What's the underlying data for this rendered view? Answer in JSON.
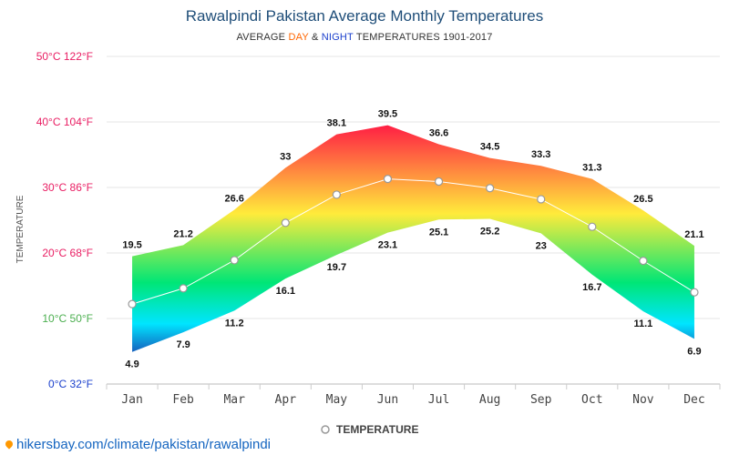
{
  "header": {
    "title": "Rawalpindi Pakistan Average Monthly Temperatures",
    "subtitle_prefix": "AVERAGE ",
    "subtitle_day": "DAY",
    "subtitle_and": " & ",
    "subtitle_night": "NIGHT",
    "subtitle_suffix": " TEMPERATURES 1901-2017"
  },
  "chart_data": {
    "type": "area",
    "categories": [
      "Jan",
      "Feb",
      "Mar",
      "Apr",
      "May",
      "Jun",
      "Jul",
      "Aug",
      "Sep",
      "Oct",
      "Nov",
      "Dec"
    ],
    "series": [
      {
        "name": "DAY",
        "values": [
          19.5,
          21.2,
          26.6,
          33,
          38.1,
          39.5,
          36.6,
          34.5,
          33.3,
          31.3,
          26.5,
          21.1
        ]
      },
      {
        "name": "NIGHT",
        "values": [
          4.9,
          7.9,
          11.2,
          16.1,
          19.7,
          23.1,
          25.1,
          25.2,
          23,
          16.7,
          11.1,
          6.9
        ]
      },
      {
        "name": "TEMPERATURE",
        "values": [
          12.2,
          14.6,
          18.9,
          24.6,
          28.9,
          31.3,
          30.9,
          29.9,
          28.2,
          24,
          18.8,
          14
        ]
      }
    ],
    "y_ticks": [
      {
        "value": 0,
        "label": "0°C 32°F"
      },
      {
        "value": 10,
        "label": "10°C 50°F"
      },
      {
        "value": 20,
        "label": "20°C 68°F"
      },
      {
        "value": 30,
        "label": "30°C 86°F"
      },
      {
        "value": 40,
        "label": "40°C 104°F"
      },
      {
        "value": 50,
        "label": "50°C 122°F"
      }
    ],
    "ylim": [
      0,
      50
    ],
    "ylabel": "TEMPERATURE",
    "legend": {
      "label": "TEMPERATURE",
      "position": "bottom"
    },
    "grid": true,
    "colors": {
      "tick_0": "#1a3fcc",
      "tick_10": "#4caf50",
      "tick_20": "#e91e63",
      "tick_30": "#e91e63",
      "tick_40": "#e91e63",
      "tick_50": "#e91e63",
      "hot": "#ff1744",
      "warm": "#ffeb3b",
      "mild": "#00e676",
      "cool": "#00e5ff",
      "cold": "#1565c0"
    }
  },
  "footer": {
    "credit": "hikersbay.com/climate/pakistan/rawalpindi"
  }
}
